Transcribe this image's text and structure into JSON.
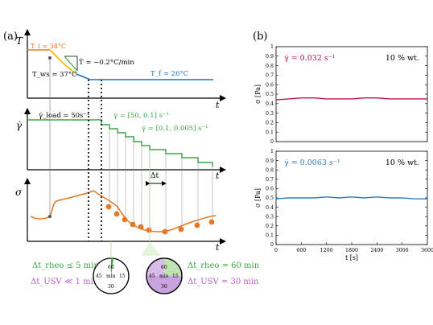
{
  "panel_a": {
    "label": "(a)",
    "temperature": {
      "y_symbol": "T",
      "t_label": "t",
      "ti_label": "T_i ≃ 38°C",
      "tws_label": "T_ws ≃ 37°C",
      "rate_label": "Ṫ ≃ −0.2°C/min",
      "tf_label": "T_f ≃ 26°C"
    },
    "shear": {
      "y_symbol": "γ̇",
      "t_label": "t",
      "load_label": "γ̇_load = 50s⁻¹",
      "range1_label": "γ̇ = [50, 0.1] s⁻¹",
      "range2_label": "γ̇ = [0.1, 0.005] s⁻¹",
      "dt_label": "Δt"
    },
    "stress": {
      "y_symbol": "σ",
      "t_label": "t"
    },
    "legend_left": {
      "line1": "Δt_rheo ≤ 5 min",
      "line2": "Δt_USV ≪ 1 min",
      "clock": [
        "60",
        "15",
        "30",
        "45",
        "min"
      ]
    },
    "legend_right": {
      "line1": "Δt_rheo = 60 min",
      "line2": "Δt_USV = 30 min",
      "clock": [
        "60",
        "15",
        "30",
        "45",
        "min"
      ]
    }
  },
  "colors": {
    "orange": "#e87722",
    "yellow": "#f2b705",
    "blue": "#1f6fc5",
    "green": "#39a845",
    "crimson": "#c0144a",
    "steelblue": "#2f7fc0",
    "purple": "#b45fc4",
    "lightgreen": "#a8d99a",
    "lavender": "#c9a3e0"
  },
  "panel_b": {
    "label": "(b)",
    "top_title": "γ̇ = 0.032 s⁻¹",
    "top_conc": "10 % wt.",
    "bottom_title": "γ̇ = 0.0063 s⁻¹",
    "bottom_conc": "10 % wt.",
    "ylabel": "σ [Pa]",
    "xlabel": "t [s]"
  },
  "chart_data": [
    {
      "type": "line",
      "title": "",
      "xlabel": "",
      "ylabel": "σ [Pa]",
      "xlim": [
        0,
        3600
      ],
      "ylim": [
        0,
        1
      ],
      "y_ticks": [
        0,
        0.1,
        0.2,
        0.3,
        0.4,
        0.5,
        0.6,
        0.7,
        0.8,
        0.9,
        1
      ],
      "x_ticks": [],
      "annotation": "γ̇ = 0.032 s⁻¹",
      "series": [
        {
          "color": "#c0144a",
          "x": [
            0,
            300,
            600,
            900,
            1200,
            1500,
            1800,
            2100,
            2400,
            2700,
            3000,
            3300,
            3600
          ],
          "values": [
            0.44,
            0.45,
            0.46,
            0.46,
            0.45,
            0.45,
            0.45,
            0.46,
            0.46,
            0.45,
            0.45,
            0.45,
            0.45
          ]
        }
      ]
    },
    {
      "type": "line",
      "title": "",
      "xlabel": "t [s]",
      "ylabel": "σ [Pa]",
      "xlim": [
        0,
        3600
      ],
      "ylim": [
        0,
        1
      ],
      "y_ticks": [
        0,
        0.1,
        0.2,
        0.3,
        0.4,
        0.5,
        0.6,
        0.7,
        0.8,
        0.9,
        1
      ],
      "x_ticks": [
        0,
        600,
        1200,
        1800,
        2400,
        3000,
        3600
      ],
      "annotation": "γ̇ = 0.0063 s⁻¹",
      "series": [
        {
          "color": "#2f7fc0",
          "x": [
            0,
            300,
            600,
            900,
            1200,
            1500,
            1800,
            2100,
            2400,
            2700,
            3000,
            3300,
            3600
          ],
          "values": [
            0.49,
            0.5,
            0.5,
            0.5,
            0.51,
            0.5,
            0.51,
            0.5,
            0.51,
            0.5,
            0.5,
            0.49,
            0.49
          ]
        }
      ]
    }
  ]
}
